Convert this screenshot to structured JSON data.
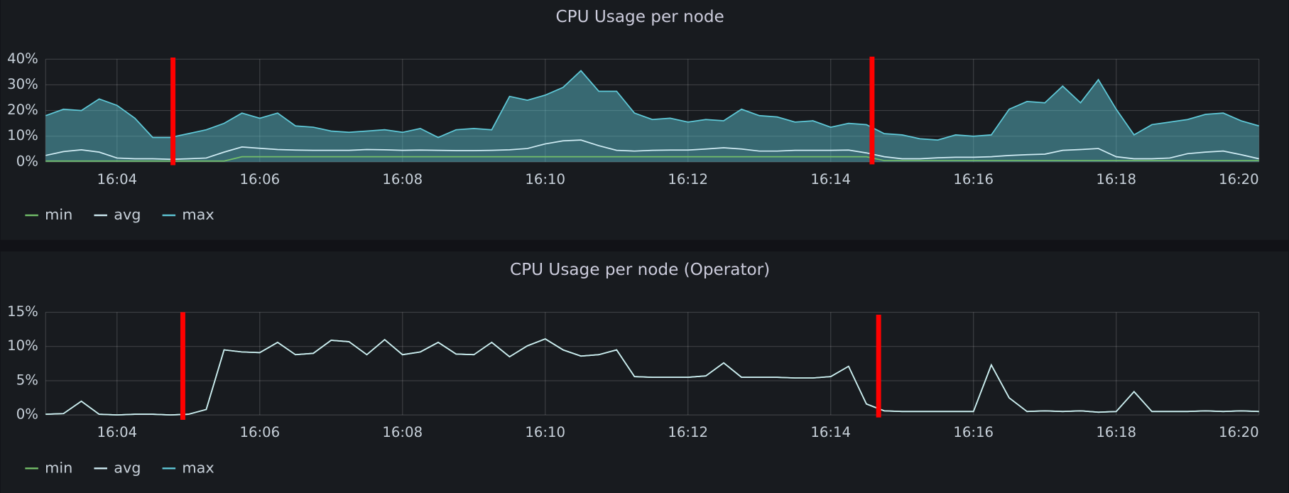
{
  "chart_data": [
    {
      "type": "line",
      "title": "CPU Usage per node",
      "x": [
        "16:03:00",
        "16:03:15",
        "16:03:30",
        "16:03:45",
        "16:04:00",
        "16:04:15",
        "16:04:30",
        "16:04:45",
        "16:05:00",
        "16:05:15",
        "16:05:30",
        "16:05:45",
        "16:06:00",
        "16:06:15",
        "16:06:30",
        "16:06:45",
        "16:07:00",
        "16:07:15",
        "16:07:30",
        "16:07:45",
        "16:08:00",
        "16:08:15",
        "16:08:30",
        "16:08:45",
        "16:09:00",
        "16:09:15",
        "16:09:30",
        "16:09:45",
        "16:10:00",
        "16:10:15",
        "16:10:30",
        "16:10:45",
        "16:11:00",
        "16:11:15",
        "16:11:30",
        "16:11:45",
        "16:12:00",
        "16:12:15",
        "16:12:30",
        "16:12:45",
        "16:13:00",
        "16:13:15",
        "16:13:30",
        "16:13:45",
        "16:14:00",
        "16:14:15",
        "16:14:30",
        "16:14:45",
        "16:15:00",
        "16:15:15",
        "16:15:30",
        "16:15:45",
        "16:16:00",
        "16:16:15",
        "16:16:30",
        "16:16:45",
        "16:17:00",
        "16:17:15",
        "16:17:30",
        "16:17:45",
        "16:18:00",
        "16:18:15",
        "16:18:30",
        "16:18:45",
        "16:19:00",
        "16:19:15",
        "16:19:30",
        "16:19:45",
        "16:20:00"
      ],
      "xlim": [
        "16:03",
        "16:20"
      ],
      "xticks": [
        "16:04",
        "16:06",
        "16:08",
        "16:10",
        "16:12",
        "16:14",
        "16:16",
        "16:18",
        "16:20"
      ],
      "ylim": [
        0,
        40
      ],
      "yticks": [
        {
          "value": 0,
          "label": "0%"
        },
        {
          "value": 10,
          "label": "10%"
        },
        {
          "value": 20,
          "label": "20%"
        },
        {
          "value": 30,
          "label": "30%"
        },
        {
          "value": 40,
          "label": "40%"
        }
      ],
      "grid": true,
      "legend": "bottom-left",
      "series": [
        {
          "name": "min",
          "color": "#73bf69",
          "values": [
            0.3,
            0.3,
            0.3,
            0.3,
            0.3,
            0.3,
            0.3,
            0.3,
            0.3,
            0.3,
            0.3,
            2,
            2,
            2,
            2,
            2,
            2,
            2,
            2,
            2,
            2,
            2,
            2,
            2,
            2,
            2,
            2,
            2,
            2,
            2,
            2,
            2,
            2,
            2,
            2,
            2,
            2,
            2,
            2,
            2,
            2,
            2,
            2,
            2,
            2,
            2,
            2,
            0.5,
            0.5,
            0.5,
            0.5,
            0.5,
            0.5,
            0.5,
            0.5,
            0.5,
            0.5,
            0.5,
            0.5,
            0.5,
            0.5,
            0.5,
            0.5,
            0.5,
            0.5,
            0.5,
            0.5,
            0.5,
            0.5
          ]
        },
        {
          "name": "avg",
          "color": "#d0ecf4",
          "values": [
            2.5,
            4,
            4.7,
            3.8,
            1.5,
            1.2,
            1.2,
            1,
            1.2,
            1.5,
            3.8,
            5.8,
            5.3,
            4.8,
            4.6,
            4.5,
            4.5,
            4.5,
            4.8,
            4.7,
            4.5,
            4.6,
            4.5,
            4.4,
            4.4,
            4.5,
            4.7,
            5.2,
            7,
            8.2,
            8.5,
            6.3,
            4.5,
            4.2,
            4.5,
            4.6,
            4.6,
            5,
            5.5,
            5,
            4.2,
            4.2,
            4.5,
            4.5,
            4.5,
            4.6,
            3.5,
            2,
            1.2,
            1.2,
            1.6,
            1.8,
            1.8,
            2,
            2.5,
            2.8,
            3,
            4.5,
            4.8,
            5.2,
            2,
            1.2,
            1.2,
            1.5,
            3.2,
            3.8,
            4.2,
            2.8,
            1.2
          ]
        },
        {
          "name": "max",
          "color": "#5fc9d8",
          "fill": true,
          "values": [
            18,
            20.5,
            20,
            24.5,
            22,
            17,
            9.5,
            9.5,
            11,
            12.5,
            15,
            19,
            17,
            19,
            14,
            13.5,
            12,
            11.5,
            12,
            12.5,
            11.5,
            13,
            9.5,
            12.5,
            13,
            12.5,
            25.5,
            24,
            26,
            29,
            35.5,
            27.5,
            27.5,
            19,
            16.5,
            17,
            15.5,
            16.5,
            16,
            20.5,
            18,
            17.5,
            15.5,
            16,
            13.5,
            15,
            14.5,
            11,
            10.5,
            9,
            8.5,
            10.5,
            10,
            10.5,
            20.5,
            23.5,
            23,
            29.5,
            23,
            32,
            20.5,
            10.5,
            14.5,
            15.5,
            16.5,
            18.5,
            19,
            16,
            14
          ]
        }
      ]
    },
    {
      "type": "line",
      "title": "CPU Usage per node (Operator)",
      "x": [
        "16:03:00",
        "16:03:15",
        "16:03:30",
        "16:03:45",
        "16:04:00",
        "16:04:15",
        "16:04:30",
        "16:04:45",
        "16:05:00",
        "16:05:15",
        "16:05:30",
        "16:05:45",
        "16:06:00",
        "16:06:15",
        "16:06:30",
        "16:06:45",
        "16:07:00",
        "16:07:15",
        "16:07:30",
        "16:07:45",
        "16:08:00",
        "16:08:15",
        "16:08:30",
        "16:08:45",
        "16:09:00",
        "16:09:15",
        "16:09:30",
        "16:09:45",
        "16:10:00",
        "16:10:15",
        "16:10:30",
        "16:10:45",
        "16:11:00",
        "16:11:15",
        "16:11:30",
        "16:11:45",
        "16:12:00",
        "16:12:15",
        "16:12:30",
        "16:12:45",
        "16:13:00",
        "16:13:15",
        "16:13:30",
        "16:13:45",
        "16:14:00",
        "16:14:15",
        "16:14:30",
        "16:14:45",
        "16:15:00",
        "16:15:15",
        "16:15:30",
        "16:15:45",
        "16:16:00",
        "16:16:15",
        "16:16:30",
        "16:16:45",
        "16:17:00",
        "16:17:15",
        "16:17:30",
        "16:17:45",
        "16:18:00",
        "16:18:15",
        "16:18:30",
        "16:18:45",
        "16:19:00",
        "16:19:15",
        "16:19:30",
        "16:19:45",
        "16:20:00"
      ],
      "xlim": [
        "16:03",
        "16:20"
      ],
      "xticks": [
        "16:04",
        "16:06",
        "16:08",
        "16:10",
        "16:12",
        "16:14",
        "16:16",
        "16:18",
        "16:20"
      ],
      "ylim": [
        0,
        15
      ],
      "yticks": [
        {
          "value": 0,
          "label": "0%"
        },
        {
          "value": 5,
          "label": "5%"
        },
        {
          "value": 10,
          "label": "10%"
        },
        {
          "value": 15,
          "label": "15%"
        }
      ],
      "grid": true,
      "legend": "bottom-left",
      "series": [
        {
          "name": "min",
          "color": "#73bf69",
          "values": [
            0.1,
            0.2,
            2.0,
            0.1,
            0,
            0.1,
            0.1,
            0,
            0.1,
            0.8,
            9.5,
            9.2,
            9.1,
            10.6,
            8.8,
            9,
            10.9,
            10.7,
            8.8,
            11,
            8.8,
            9.2,
            10.6,
            8.9,
            8.8,
            10.6,
            8.5,
            10.1,
            11.1,
            9.5,
            8.6,
            8.8,
            9.5,
            5.6,
            5.5,
            5.5,
            5.5,
            5.7,
            7.6,
            5.5,
            5.5,
            5.5,
            5.4,
            5.4,
            5.6,
            7.1,
            1.6,
            0.6,
            0.5,
            0.5,
            0.5,
            0.5,
            0.5,
            7.3,
            2.5,
            0.5,
            0.6,
            0.5,
            0.6,
            0.4,
            0.5,
            3.4,
            0.5,
            0.5,
            0.5,
            0.6,
            0.5,
            0.6,
            0.5
          ]
        },
        {
          "name": "avg",
          "color": "#d0ecf4",
          "values": [
            0.1,
            0.2,
            2.0,
            0.1,
            0,
            0.1,
            0.1,
            0,
            0.1,
            0.8,
            9.5,
            9.2,
            9.1,
            10.6,
            8.8,
            9,
            10.9,
            10.7,
            8.8,
            11,
            8.8,
            9.2,
            10.6,
            8.9,
            8.8,
            10.6,
            8.5,
            10.1,
            11.1,
            9.5,
            8.6,
            8.8,
            9.5,
            5.6,
            5.5,
            5.5,
            5.5,
            5.7,
            7.6,
            5.5,
            5.5,
            5.5,
            5.4,
            5.4,
            5.6,
            7.1,
            1.6,
            0.6,
            0.5,
            0.5,
            0.5,
            0.5,
            0.5,
            7.3,
            2.5,
            0.5,
            0.6,
            0.5,
            0.6,
            0.4,
            0.5,
            3.4,
            0.5,
            0.5,
            0.5,
            0.6,
            0.5,
            0.6,
            0.5
          ]
        },
        {
          "name": "max",
          "color": "#5fc9d8",
          "values": [
            0.1,
            0.2,
            2.0,
            0.1,
            0,
            0.1,
            0.1,
            0,
            0.1,
            0.8,
            9.5,
            9.2,
            9.1,
            10.6,
            8.8,
            9,
            10.9,
            10.7,
            8.8,
            11,
            8.8,
            9.2,
            10.6,
            8.9,
            8.8,
            10.6,
            8.5,
            10.1,
            11.1,
            9.5,
            8.6,
            8.8,
            9.5,
            5.6,
            5.5,
            5.5,
            5.5,
            5.7,
            7.6,
            5.5,
            5.5,
            5.5,
            5.4,
            5.4,
            5.6,
            7.1,
            1.6,
            0.6,
            0.5,
            0.5,
            0.5,
            0.5,
            0.5,
            7.3,
            2.5,
            0.5,
            0.6,
            0.5,
            0.6,
            0.4,
            0.5,
            3.4,
            0.5,
            0.5,
            0.5,
            0.6,
            0.5,
            0.6,
            0.5
          ]
        }
      ]
    }
  ]
}
